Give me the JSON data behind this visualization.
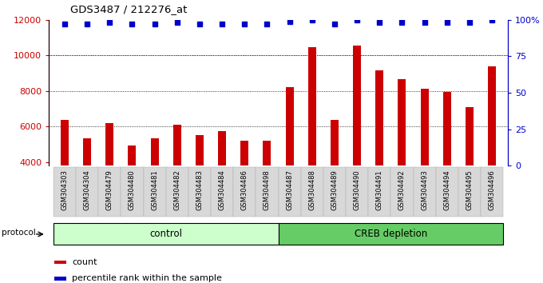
{
  "title": "GDS3487 / 212276_at",
  "samples": [
    "GSM304303",
    "GSM304304",
    "GSM304479",
    "GSM304480",
    "GSM304481",
    "GSM304482",
    "GSM304483",
    "GSM304484",
    "GSM304486",
    "GSM304498",
    "GSM304487",
    "GSM304488",
    "GSM304489",
    "GSM304490",
    "GSM304491",
    "GSM304492",
    "GSM304493",
    "GSM304494",
    "GSM304495",
    "GSM304496"
  ],
  "counts": [
    6350,
    5350,
    6200,
    4950,
    5350,
    6100,
    5500,
    5750,
    5200,
    5200,
    8200,
    10450,
    6350,
    10550,
    9150,
    8650,
    8100,
    7950,
    7100,
    9400
  ],
  "percentile_ranks": [
    97,
    97,
    98,
    97,
    97,
    98,
    97,
    97,
    97,
    97,
    99,
    100,
    97,
    100,
    98,
    98,
    98,
    98,
    98,
    100
  ],
  "control_count": 10,
  "creb_count": 10,
  "ylim_left": [
    3800,
    12000
  ],
  "ylim_right": [
    0,
    100
  ],
  "yticks_left": [
    4000,
    6000,
    8000,
    10000,
    12000
  ],
  "yticks_right": [
    0,
    25,
    50,
    75,
    100
  ],
  "bar_color": "#cc0000",
  "dot_color": "#0000cc",
  "control_label": "control",
  "creb_label": "CREB depletion",
  "protocol_label": "protocol",
  "legend_count": "count",
  "legend_pct": "percentile rank within the sample",
  "bg_label_control": "#ccffcc",
  "bg_label_creb": "#66cc66",
  "tick_color_left": "#cc0000",
  "tick_color_right": "#0000cc",
  "grid_yticks": [
    10000,
    8000,
    6000
  ]
}
